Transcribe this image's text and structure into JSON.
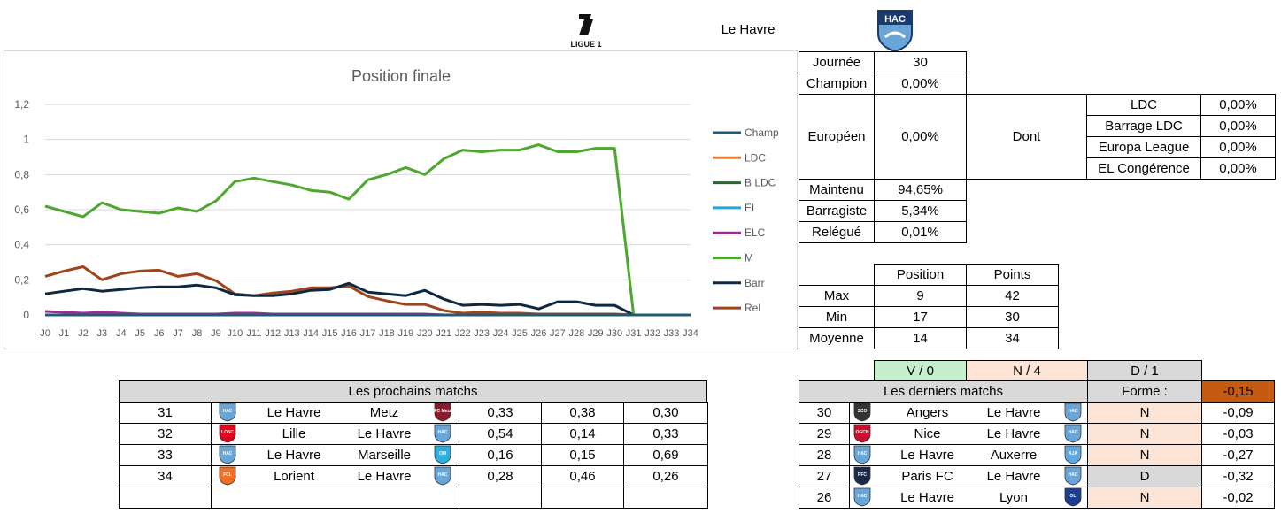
{
  "header": {
    "league_logo_text": "LIGUE 1",
    "club_name": "Le Havre",
    "club_logo_text": "HAC"
  },
  "chart_data": {
    "type": "line",
    "title": "Position finale",
    "categories": [
      "J0",
      "J1",
      "J2",
      "J3",
      "J4",
      "J5",
      "J6",
      "J7",
      "J8",
      "J9",
      "J10",
      "J11",
      "J12",
      "J13",
      "J14",
      "J15",
      "J16",
      "J17",
      "J18",
      "J19",
      "J20",
      "J21",
      "J22",
      "J23",
      "J24",
      "J25",
      "J26",
      "J27",
      "J28",
      "J29",
      "J30",
      "J31",
      "J32",
      "J33",
      "J34"
    ],
    "ylim": [
      0,
      1.2
    ],
    "yticks": [
      "0",
      "0,2",
      "0,4",
      "0,6",
      "0,8",
      "1",
      "1,2"
    ],
    "grid": true,
    "legend_position": "right",
    "series": [
      {
        "name": "Champ",
        "color": "#1f5c74",
        "values": [
          0,
          0,
          0,
          0,
          0,
          0,
          0,
          0,
          0,
          0,
          0,
          0,
          0,
          0,
          0,
          0,
          0,
          0,
          0,
          0,
          0,
          0,
          0,
          0,
          0,
          0,
          0,
          0,
          0,
          0,
          0,
          0,
          0,
          0,
          0
        ]
      },
      {
        "name": "LDC",
        "color": "#ed7d31",
        "values": [
          0,
          0,
          0,
          0,
          0,
          0,
          0,
          0,
          0,
          0,
          0,
          0,
          0,
          0,
          0,
          0,
          0,
          0,
          0,
          0,
          0,
          0,
          0,
          0,
          0,
          0,
          0,
          0,
          0,
          0,
          0,
          0,
          0,
          0,
          0
        ]
      },
      {
        "name": "B LDC",
        "color": "#1e6b2e",
        "values": [
          0,
          0,
          0,
          0,
          0,
          0,
          0,
          0,
          0,
          0,
          0,
          0,
          0,
          0,
          0,
          0,
          0,
          0,
          0,
          0,
          0,
          0,
          0,
          0,
          0,
          0,
          0,
          0,
          0,
          0,
          0,
          0,
          0,
          0,
          0
        ]
      },
      {
        "name": "EL",
        "color": "#1ea7e1",
        "values": [
          0,
          0,
          0,
          0,
          0,
          0,
          0,
          0,
          0,
          0,
          0,
          0,
          0,
          0,
          0,
          0,
          0,
          0,
          0,
          0,
          0,
          0,
          0,
          0,
          0,
          0,
          0,
          0,
          0,
          0,
          0,
          0,
          0,
          0,
          0
        ]
      },
      {
        "name": "ELC",
        "color": "#a02b93",
        "values": [
          0.02,
          0.015,
          0.01,
          0.015,
          0.01,
          0.005,
          0.005,
          0.005,
          0.005,
          0.005,
          0.01,
          0.01,
          0.005,
          0.005,
          0.005,
          0.005,
          0.005,
          0.005,
          0.005,
          0.005,
          0.005,
          0,
          0,
          0,
          0,
          0,
          0,
          0,
          0,
          0,
          0,
          0,
          0,
          0,
          0
        ]
      },
      {
        "name": "M",
        "color": "#4ea72e",
        "values": [
          0.62,
          0.59,
          0.56,
          0.64,
          0.6,
          0.59,
          0.58,
          0.61,
          0.59,
          0.65,
          0.76,
          0.78,
          0.76,
          0.74,
          0.71,
          0.7,
          0.66,
          0.77,
          0.8,
          0.84,
          0.8,
          0.89,
          0.94,
          0.93,
          0.94,
          0.94,
          0.97,
          0.93,
          0.93,
          0.95,
          0.95,
          0,
          0,
          0,
          0
        ]
      },
      {
        "name": "Barr",
        "color": "#0e2841",
        "values": [
          0.12,
          0.135,
          0.15,
          0.135,
          0.145,
          0.155,
          0.16,
          0.16,
          0.17,
          0.155,
          0.115,
          0.11,
          0.11,
          0.12,
          0.14,
          0.145,
          0.18,
          0.13,
          0.12,
          0.11,
          0.14,
          0.09,
          0.055,
          0.06,
          0.055,
          0.06,
          0.035,
          0.075,
          0.075,
          0.055,
          0.055,
          0,
          0,
          0,
          0
        ]
      },
      {
        "name": "Rel",
        "color": "#a0441a",
        "values": [
          0.22,
          0.25,
          0.275,
          0.2,
          0.235,
          0.25,
          0.255,
          0.22,
          0.235,
          0.195,
          0.12,
          0.11,
          0.125,
          0.135,
          0.155,
          0.155,
          0.165,
          0.105,
          0.08,
          0.06,
          0.06,
          0.025,
          0.01,
          0.015,
          0.01,
          0.01,
          0.005,
          0.005,
          0.005,
          0.005,
          0.005,
          0,
          0,
          0,
          0
        ]
      }
    ]
  },
  "summary": {
    "journee_label": "Journée",
    "journee_value": "30",
    "champion_label": "Champion",
    "champion_value": "0,00%",
    "europeen_label": "Européen",
    "europeen_value": "0,00%",
    "dont_label": "Dont",
    "breakdown": [
      {
        "label": "LDC",
        "value": "0,00%"
      },
      {
        "label": "Barrage LDC",
        "value": "0,00%"
      },
      {
        "label": "Europa League",
        "value": "0,00%"
      },
      {
        "label": "EL Congérence",
        "value": "0,00%"
      }
    ],
    "maintenu_label": "Maintenu",
    "maintenu_value": "94,65%",
    "barragiste_label": "Barragiste",
    "barragiste_value": "5,34%",
    "relegue_label": "Relégué",
    "relegue_value": "0,01%"
  },
  "stats": {
    "headers": [
      "Position",
      "Points"
    ],
    "rows": [
      {
        "label": "Max",
        "position": "9",
        "points": "42"
      },
      {
        "label": "Min",
        "position": "17",
        "points": "30"
      },
      {
        "label": "Moyenne",
        "position": "14",
        "points": "34"
      }
    ]
  },
  "record": {
    "wins": "V / 0",
    "draws": "N / 4",
    "losses": "D / 1"
  },
  "next_matches": {
    "title": "Les prochains matchs",
    "rows": [
      {
        "round": "31",
        "home": "Le Havre",
        "away": "Metz",
        "p1": "0,33",
        "p2": "0,38",
        "p3": "0,30",
        "home_logo": "HAC",
        "away_logo": "FC Metz",
        "home_color": "#6aa5d8",
        "away_color": "#8b1a2b"
      },
      {
        "round": "32",
        "home": "Lille",
        "away": "Le Havre",
        "p1": "0,54",
        "p2": "0,14",
        "p3": "0,33",
        "home_logo": "LOSC",
        "away_logo": "HAC",
        "home_color": "#e2001a",
        "away_color": "#6aa5d8"
      },
      {
        "round": "33",
        "home": "Le Havre",
        "away": "Marseille",
        "p1": "0,16",
        "p2": "0,15",
        "p3": "0,69",
        "home_logo": "HAC",
        "away_logo": "OM",
        "home_color": "#6aa5d8",
        "away_color": "#2faee0"
      },
      {
        "round": "34",
        "home": "Lorient",
        "away": "Le Havre",
        "p1": "0,28",
        "p2": "0,46",
        "p3": "0,26",
        "home_logo": "FCL",
        "away_logo": "HAC",
        "home_color": "#f37021",
        "away_color": "#6aa5d8"
      }
    ]
  },
  "last_matches": {
    "title": "Les derniers matchs",
    "form_label": "Forme :",
    "form_value": "-0,15",
    "rows": [
      {
        "round": "30",
        "home": "Angers",
        "away": "Le Havre",
        "result": "N",
        "score": "-0,09",
        "home_logo": "SCO",
        "away_logo": "HAC",
        "home_color": "#333333",
        "away_color": "#6aa5d8"
      },
      {
        "round": "29",
        "home": "Nice",
        "away": "Le Havre",
        "result": "N",
        "score": "-0,03",
        "home_logo": "OGCN",
        "away_logo": "HAC",
        "home_color": "#c8102e",
        "away_color": "#6aa5d8"
      },
      {
        "round": "28",
        "home": "Le Havre",
        "away": "Auxerre",
        "result": "N",
        "score": "-0,27",
        "home_logo": "HAC",
        "away_logo": "AJA",
        "home_color": "#6aa5d8",
        "away_color": "#5fa8e0"
      },
      {
        "round": "27",
        "home": "Paris FC",
        "away": "Le Havre",
        "result": "D",
        "score": "-0,32",
        "home_logo": "PFC",
        "away_logo": "HAC",
        "home_color": "#1b2a4a",
        "away_color": "#6aa5d8"
      },
      {
        "round": "26",
        "home": "Le Havre",
        "away": "Lyon",
        "result": "N",
        "score": "-0,02",
        "home_logo": "HAC",
        "away_logo": "OL",
        "home_color": "#6aa5d8",
        "away_color": "#1d3d8f"
      }
    ]
  }
}
